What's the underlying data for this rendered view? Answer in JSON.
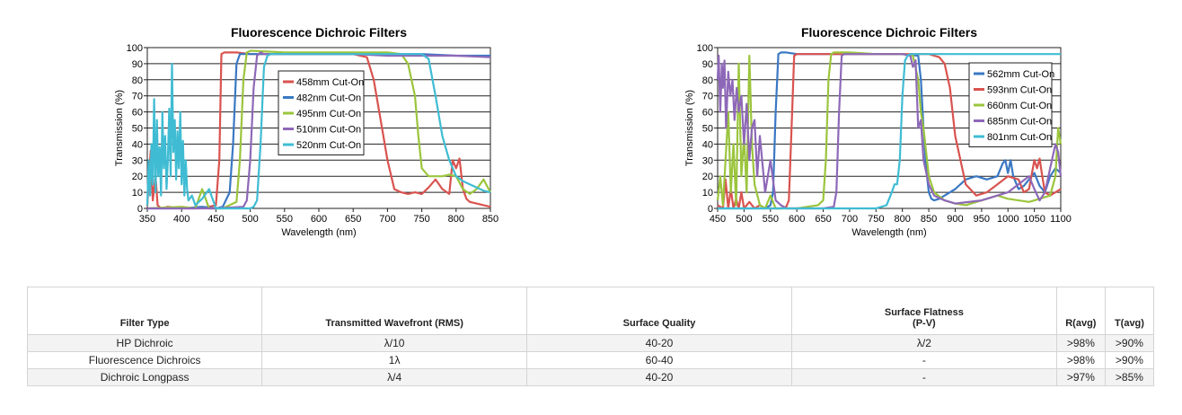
{
  "chart_data": [
    {
      "type": "line",
      "title": "Fluorescence Dichroic Filters",
      "xlabel": "Wavelength (nm)",
      "ylabel": "Transmission (%)",
      "xlim": [
        350,
        850
      ],
      "ylim": [
        0,
        100
      ],
      "xticks": [
        350,
        400,
        450,
        500,
        550,
        600,
        650,
        700,
        750,
        800,
        850
      ],
      "yticks": [
        0,
        10,
        20,
        30,
        40,
        50,
        60,
        70,
        80,
        90,
        100
      ],
      "grid": "horizontal",
      "legend_position": "center",
      "series": [
        {
          "name": "458mm Cut-On",
          "color": "#d9534f",
          "x": [
            350,
            355,
            358,
            362,
            365,
            370,
            380,
            400,
            420,
            440,
            450,
            455,
            458,
            462,
            470,
            480,
            500,
            550,
            600,
            650,
            670,
            680,
            690,
            700,
            710,
            720,
            730,
            740,
            750,
            760,
            770,
            780,
            790,
            795,
            800,
            805,
            810,
            815,
            820,
            830,
            840,
            850
          ],
          "y": [
            2,
            36,
            5,
            20,
            2,
            0,
            1,
            0,
            0,
            1,
            2,
            30,
            96,
            97,
            97,
            97,
            96,
            96,
            96,
            96,
            94,
            80,
            55,
            30,
            12,
            10,
            9,
            10,
            9,
            13,
            18,
            12,
            9,
            30,
            25,
            31,
            12,
            6,
            4,
            3,
            2,
            1
          ]
        },
        {
          "name": "482nm Cut-On",
          "color": "#3a78c3",
          "x": [
            350,
            370,
            400,
            430,
            450,
            460,
            470,
            475,
            480,
            485,
            490,
            500,
            550,
            600,
            650,
            700,
            750,
            800,
            850
          ],
          "y": [
            0,
            0,
            0,
            1,
            0,
            1,
            10,
            40,
            90,
            96,
            96,
            96,
            96,
            96,
            96,
            96,
            96,
            95,
            95
          ]
        },
        {
          "name": "495nm Cut-On",
          "color": "#9bc53d",
          "x": [
            350,
            400,
            420,
            430,
            440,
            460,
            480,
            485,
            490,
            495,
            500,
            505,
            550,
            600,
            650,
            700,
            720,
            730,
            740,
            745,
            750,
            760,
            770,
            780,
            790,
            800,
            810,
            820,
            830,
            840,
            850
          ],
          "y": [
            0,
            1,
            0,
            12,
            0,
            0,
            4,
            30,
            80,
            97,
            98,
            98,
            97,
            97,
            97,
            97,
            96,
            90,
            70,
            45,
            25,
            20,
            20,
            20,
            21,
            20,
            12,
            9,
            12,
            18,
            10
          ]
        },
        {
          "name": "510nm Cut-On",
          "color": "#8e68b8",
          "x": [
            350,
            400,
            450,
            490,
            495,
            500,
            505,
            510,
            515,
            520,
            550,
            600,
            650,
            700,
            750,
            800,
            850
          ],
          "y": [
            0,
            0,
            0,
            1,
            5,
            30,
            75,
            95,
            97,
            96,
            96,
            96,
            96,
            95,
            95,
            95,
            94
          ]
        },
        {
          "name": "520nm Cut-On",
          "color": "#3fbcd3",
          "x": [
            350,
            352,
            354,
            356,
            358,
            360,
            362,
            364,
            366,
            368,
            370,
            372,
            374,
            376,
            378,
            380,
            382,
            384,
            386,
            388,
            390,
            392,
            394,
            396,
            398,
            400,
            402,
            404,
            406,
            408,
            410,
            415,
            420,
            430,
            440,
            450,
            460,
            470,
            480,
            490,
            500,
            505,
            510,
            515,
            520,
            525,
            530,
            550,
            600,
            650,
            700,
            750,
            760,
            770,
            780,
            790,
            800,
            810,
            820,
            830,
            840,
            850
          ],
          "y": [
            2,
            30,
            8,
            40,
            15,
            68,
            10,
            55,
            20,
            38,
            8,
            60,
            25,
            45,
            12,
            30,
            62,
            20,
            90,
            35,
            55,
            18,
            48,
            25,
            60,
            15,
            42,
            8,
            30,
            12,
            5,
            8,
            2,
            6,
            12,
            0,
            0,
            0,
            0,
            0,
            0,
            1,
            5,
            40,
            88,
            95,
            96,
            96,
            96,
            96,
            96,
            96,
            93,
            70,
            45,
            30,
            20,
            17,
            15,
            13,
            11,
            10
          ]
        }
      ]
    },
    {
      "type": "line",
      "title": "Fluorescence Dichroic Filters",
      "xlabel": "Wavelength (nm)",
      "ylabel": "Transmission (%)",
      "xlim": [
        450,
        1100
      ],
      "ylim": [
        0,
        100
      ],
      "xticks": [
        450,
        500,
        550,
        600,
        650,
        700,
        750,
        800,
        850,
        900,
        950,
        1000,
        1050,
        1100
      ],
      "yticks": [
        0,
        10,
        20,
        30,
        40,
        50,
        60,
        70,
        80,
        90,
        100
      ],
      "grid": "horizontal",
      "legend_position": "top-right",
      "series": [
        {
          "name": "562mm Cut-On",
          "color": "#3a78c3",
          "x": [
            450,
            500,
            540,
            550,
            555,
            560,
            565,
            570,
            580,
            600,
            700,
            800,
            830,
            835,
            840,
            845,
            850,
            855,
            860,
            870,
            880,
            900,
            920,
            940,
            960,
            980,
            990,
            995,
            1000,
            1005,
            1010,
            1020,
            1030,
            1040,
            1050,
            1060,
            1070,
            1080,
            1090,
            1100
          ],
          "y": [
            0,
            0,
            0,
            2,
            10,
            60,
            96,
            97,
            97,
            96,
            96,
            96,
            95,
            80,
            50,
            25,
            10,
            6,
            5,
            6,
            8,
            12,
            18,
            20,
            18,
            20,
            28,
            30,
            22,
            30,
            20,
            12,
            14,
            18,
            22,
            14,
            10,
            20,
            25,
            22
          ]
        },
        {
          "name": "593nm Cut-On",
          "color": "#d9534f",
          "x": [
            450,
            460,
            465,
            470,
            475,
            480,
            485,
            490,
            495,
            500,
            510,
            520,
            530,
            540,
            550,
            560,
            570,
            580,
            585,
            590,
            595,
            600,
            620,
            650,
            700,
            750,
            800,
            850,
            860,
            870,
            880,
            890,
            900,
            920,
            940,
            960,
            980,
            1000,
            1020,
            1030,
            1040,
            1050,
            1055,
            1060,
            1065,
            1070,
            1080,
            1090,
            1100
          ],
          "y": [
            2,
            0,
            18,
            0,
            12,
            0,
            6,
            0,
            10,
            0,
            4,
            0,
            2,
            0,
            0,
            0,
            0,
            1,
            5,
            50,
            95,
            96,
            96,
            96,
            96,
            96,
            96,
            96,
            95,
            94,
            90,
            75,
            45,
            15,
            8,
            10,
            15,
            20,
            18,
            10,
            12,
            30,
            25,
            31,
            20,
            10,
            8,
            10,
            12
          ]
        },
        {
          "name": "660nm Cut-On",
          "color": "#9bc53d",
          "x": [
            450,
            455,
            460,
            465,
            470,
            475,
            480,
            485,
            490,
            495,
            500,
            505,
            510,
            515,
            520,
            530,
            540,
            550,
            560,
            580,
            600,
            620,
            640,
            650,
            655,
            660,
            665,
            670,
            700,
            750,
            800,
            820,
            830,
            835,
            840,
            845,
            850,
            860,
            880,
            900,
            920,
            940,
            960,
            980,
            1000,
            1020,
            1040,
            1060,
            1080,
            1090,
            1095,
            1100
          ],
          "y": [
            5,
            20,
            2,
            30,
            60,
            10,
            40,
            2,
            90,
            20,
            45,
            10,
            95,
            40,
            15,
            2,
            0,
            8,
            0,
            0,
            0,
            1,
            2,
            5,
            30,
            80,
            96,
            97,
            97,
            96,
            96,
            95,
            80,
            60,
            50,
            35,
            20,
            10,
            5,
            3,
            2,
            4,
            6,
            8,
            6,
            5,
            4,
            6,
            8,
            20,
            50,
            40
          ]
        },
        {
          "name": "685nm Cut-On",
          "color": "#8e68b8",
          "x": [
            450,
            452,
            455,
            458,
            460,
            463,
            466,
            470,
            474,
            478,
            482,
            486,
            490,
            495,
            500,
            505,
            510,
            515,
            520,
            525,
            530,
            540,
            550,
            560,
            570,
            580,
            600,
            650,
            670,
            675,
            680,
            685,
            690,
            700,
            750,
            800,
            815,
            820,
            825,
            830,
            835,
            840,
            850,
            860,
            880,
            900,
            950,
            1000,
            1040,
            1050,
            1060,
            1070,
            1080,
            1090,
            1095,
            1100
          ],
          "y": [
            80,
            95,
            60,
            90,
            75,
            92,
            50,
            85,
            70,
            80,
            55,
            75,
            60,
            70,
            40,
            65,
            30,
            50,
            55,
            20,
            45,
            10,
            30,
            5,
            2,
            0,
            0,
            0,
            1,
            10,
            60,
            95,
            96,
            96,
            96,
            96,
            95,
            88,
            92,
            50,
            55,
            30,
            15,
            8,
            5,
            3,
            5,
            10,
            20,
            12,
            5,
            10,
            25,
            40,
            35,
            20
          ]
        },
        {
          "name": "801nm Cut-On",
          "color": "#3fbcd3",
          "x": [
            450,
            500,
            600,
            700,
            750,
            770,
            780,
            785,
            790,
            795,
            800,
            805,
            810,
            815,
            820,
            850,
            900,
            950,
            1000,
            1050,
            1100
          ],
          "y": [
            0,
            0,
            0,
            0,
            0,
            2,
            10,
            15,
            15,
            30,
            70,
            92,
            95,
            96,
            96,
            96,
            96,
            96,
            96,
            96,
            96
          ]
        }
      ]
    }
  ],
  "table": {
    "headers": {
      "filter_type": "Filter Type",
      "wavefront": "Transmitted Wavefront (RMS)",
      "surface_quality": "Surface Quality",
      "surface_flatness_line1": "Surface Flatness",
      "surface_flatness_line2": "(P-V)",
      "r_avg": "R(avg)",
      "t_avg": "T(avg)"
    },
    "rows": [
      {
        "filter_type": "HP Dichroic",
        "wavefront": "λ/10",
        "surface_quality": "40-20",
        "surface_flatness": "λ/2",
        "r_avg": ">98%",
        "t_avg": ">90%"
      },
      {
        "filter_type": "Fluorescence Dichroics",
        "wavefront": "1λ",
        "surface_quality": "60-40",
        "surface_flatness": "-",
        "r_avg": ">98%",
        "t_avg": ">90%"
      },
      {
        "filter_type": "Dichroic Longpass",
        "wavefront": "λ/4",
        "surface_quality": "40-20",
        "surface_flatness": "-",
        "r_avg": ">97%",
        "t_avg": ">85%"
      }
    ]
  }
}
